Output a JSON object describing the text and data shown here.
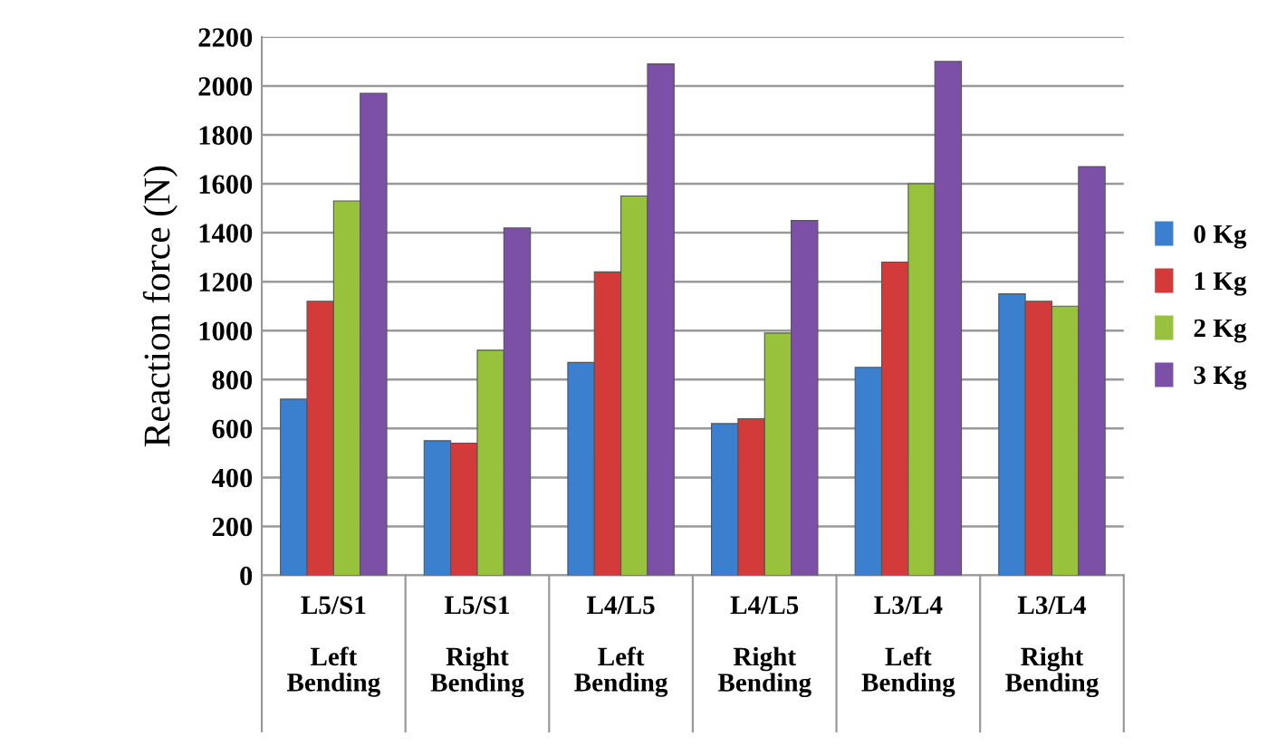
{
  "chart_data": {
    "type": "bar",
    "ylabel": "Reaction force (N)",
    "categories": [
      "L5/S1\n\nLeft\nBending",
      "L5/S1\n\nRight\nBending",
      "L4/L5\n\nLeft\nBending",
      "L4/L5\n\nRight\nBending",
      "L3/L4\n\nLeft\nBending",
      "L3/L4\n\nRight\nBending"
    ],
    "series": [
      {
        "name": "0 Kg",
        "color": "#3b7fcf",
        "values": [
          720,
          550,
          870,
          620,
          850,
          1150
        ]
      },
      {
        "name": "1 Kg",
        "color": "#d33b3b",
        "values": [
          1120,
          540,
          1240,
          640,
          1280,
          1120
        ]
      },
      {
        "name": "2 Kg",
        "color": "#98c23c",
        "values": [
          1530,
          920,
          1550,
          990,
          1600,
          1100
        ]
      },
      {
        "name": "3 Kg",
        "color": "#7d50a8",
        "values": [
          1970,
          1420,
          2090,
          1450,
          2100,
          1670
        ]
      }
    ],
    "ylim": [
      0,
      2200
    ],
    "yticks": [
      0,
      200,
      400,
      600,
      800,
      1000,
      1200,
      1400,
      1600,
      1800,
      2000,
      2200
    ],
    "grid": "y",
    "legend": "right"
  }
}
